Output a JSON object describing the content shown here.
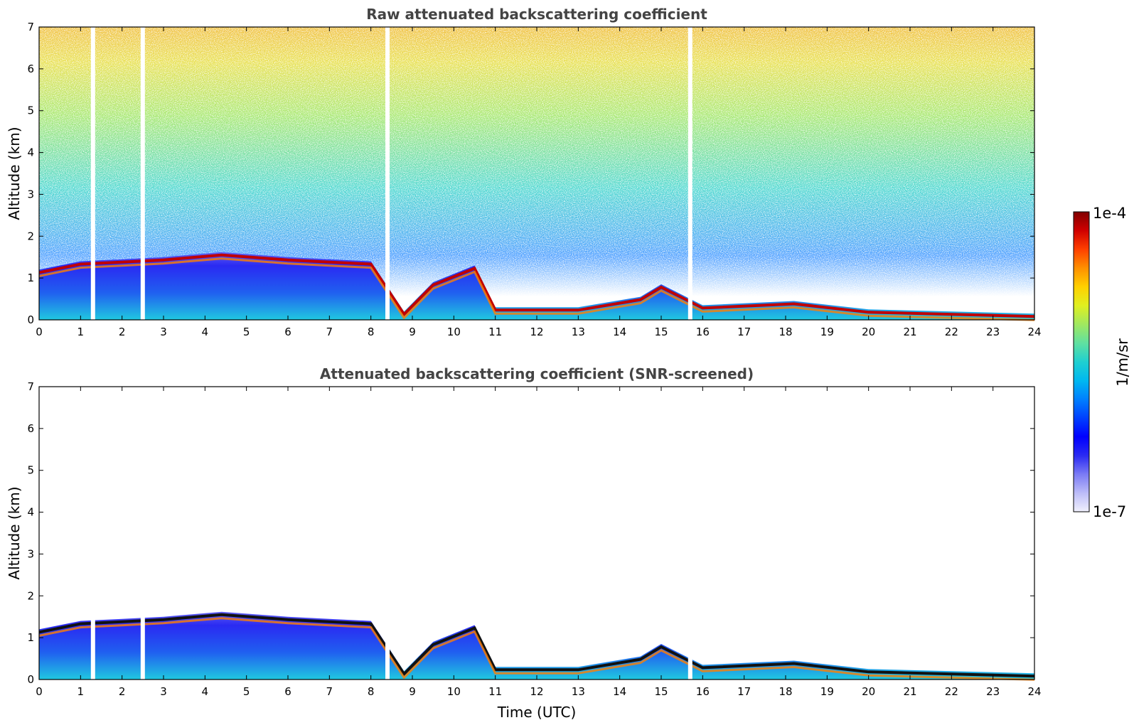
{
  "chart_data": [
    {
      "type": "heatmap",
      "title": "Raw attenuated backscattering coefficient",
      "xlabel": "",
      "ylabel": "Altitude (km)",
      "xlim": [
        0,
        24
      ],
      "ylim": [
        0,
        7
      ],
      "xticks": [
        "0",
        "1",
        "2",
        "3",
        "4",
        "5",
        "6",
        "7",
        "8",
        "9",
        "10",
        "11",
        "12",
        "13",
        "14",
        "15",
        "16",
        "17",
        "18",
        "19",
        "20",
        "21",
        "22",
        "23",
        "24"
      ],
      "yticks": [
        "0",
        "1",
        "2",
        "3",
        "4",
        "5",
        "6",
        "7"
      ],
      "data_gaps_utc": [
        1.3,
        2.5,
        8.4,
        15.7
      ],
      "boundary_layer_top_km": [
        {
          "t": 0,
          "z": 1.2
        },
        {
          "t": 1,
          "z": 1.4
        },
        {
          "t": 2,
          "z": 1.45
        },
        {
          "t": 3,
          "z": 1.5
        },
        {
          "t": 4.4,
          "z": 1.62
        },
        {
          "t": 6,
          "z": 1.5
        },
        {
          "t": 7,
          "z": 1.45
        },
        {
          "t": 8,
          "z": 1.4
        },
        {
          "t": 8.8,
          "z": 0.2
        },
        {
          "t": 9.5,
          "z": 0.9
        },
        {
          "t": 10.5,
          "z": 1.3
        },
        {
          "t": 11,
          "z": 0.3
        },
        {
          "t": 13,
          "z": 0.3
        },
        {
          "t": 14.5,
          "z": 0.55
        },
        {
          "t": 15,
          "z": 0.85
        },
        {
          "t": 16,
          "z": 0.35
        },
        {
          "t": 18.2,
          "z": 0.45
        },
        {
          "t": 20,
          "z": 0.25
        },
        {
          "t": 24,
          "z": 0.15
        }
      ]
    },
    {
      "type": "heatmap",
      "title": "Attenuated backscattering coefficient (SNR-screened)",
      "xlabel": "Time (UTC)",
      "ylabel": "Altitude (km)",
      "xlim": [
        0,
        24
      ],
      "ylim": [
        0,
        7
      ],
      "xticks": [
        "0",
        "1",
        "2",
        "3",
        "4",
        "5",
        "6",
        "7",
        "8",
        "9",
        "10",
        "11",
        "12",
        "13",
        "14",
        "15",
        "16",
        "17",
        "18",
        "19",
        "20",
        "21",
        "22",
        "23",
        "24"
      ],
      "yticks": [
        "0",
        "1",
        "2",
        "3",
        "4",
        "5",
        "6",
        "7"
      ],
      "data_gaps_utc": [
        1.3,
        2.5,
        8.4,
        15.7
      ],
      "boundary_layer_top_km": [
        {
          "t": 0,
          "z": 1.2
        },
        {
          "t": 1,
          "z": 1.4
        },
        {
          "t": 2,
          "z": 1.45
        },
        {
          "t": 3,
          "z": 1.5
        },
        {
          "t": 4.4,
          "z": 1.62
        },
        {
          "t": 6,
          "z": 1.5
        },
        {
          "t": 7,
          "z": 1.45
        },
        {
          "t": 8,
          "z": 1.4
        },
        {
          "t": 8.8,
          "z": 0.2
        },
        {
          "t": 9.5,
          "z": 0.9
        },
        {
          "t": 10.5,
          "z": 1.3
        },
        {
          "t": 11,
          "z": 0.3
        },
        {
          "t": 13,
          "z": 0.3
        },
        {
          "t": 14.5,
          "z": 0.55
        },
        {
          "t": 15,
          "z": 0.85
        },
        {
          "t": 16,
          "z": 0.35
        },
        {
          "t": 18.2,
          "z": 0.45
        },
        {
          "t": 20,
          "z": 0.25
        },
        {
          "t": 24,
          "z": 0.15
        }
      ]
    }
  ],
  "colorbar": {
    "label": "1/m/sr",
    "max_label": "1e-4",
    "min_label": "1e-7",
    "scale": "log",
    "colors": [
      "#f0f0fc",
      "#bcbcf8",
      "#7b7bf5",
      "#2a2af2",
      "#0000ff",
      "#0040ff",
      "#0080ff",
      "#00b8f0",
      "#20d0d0",
      "#60e0a0",
      "#a0e860",
      "#e0f020",
      "#ffd000",
      "#ff9000",
      "#ff4000",
      "#d00000",
      "#800000"
    ]
  }
}
